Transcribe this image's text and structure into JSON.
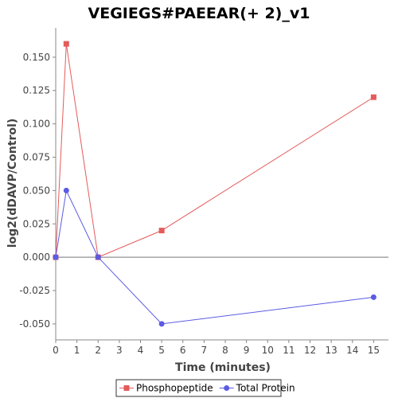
{
  "chart_data": {
    "type": "line",
    "title": "VEGIEGS#PAEEAR(+ 2)_v1",
    "xlabel": "Time (minutes)",
    "ylabel": "log2(dDAVP/Control)",
    "xlim": [
      0,
      15.7
    ],
    "ylim": [
      -0.062,
      0.172
    ],
    "x_ticks": [
      0,
      1,
      2,
      3,
      4,
      5,
      6,
      7,
      8,
      9,
      10,
      11,
      12,
      13,
      14,
      15
    ],
    "y_ticks": [
      -0.05,
      -0.025,
      0.0,
      0.025,
      0.05,
      0.075,
      0.1,
      0.125,
      0.15
    ],
    "y_tick_labels": [
      "-0.050",
      "-0.025",
      "0.000",
      "0.025",
      "0.050",
      "0.075",
      "0.100",
      "0.125",
      "0.150"
    ],
    "zero_line": true,
    "legend_position": "bottom",
    "series": [
      {
        "name": "Phosphopeptide",
        "color": "#e35b5b",
        "marker": "square",
        "x": [
          0,
          0.5,
          2,
          5,
          15
        ],
        "y": [
          0.0,
          0.16,
          0.0,
          0.02,
          0.12
        ]
      },
      {
        "name": "Total Protein",
        "color": "#5b5be3",
        "marker": "circle",
        "x": [
          0,
          0.5,
          2,
          5,
          15
        ],
        "y": [
          0.0,
          0.05,
          0.0,
          -0.05,
          -0.03
        ]
      }
    ]
  }
}
